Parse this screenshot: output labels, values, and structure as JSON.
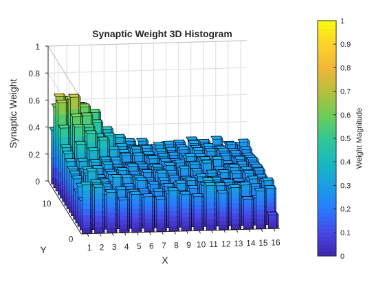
{
  "chart_data": {
    "type": "bar3",
    "title": "Synaptic Weight 3D Histogram",
    "xlabel": "X",
    "ylabel": "Y",
    "zlabel": "Synaptic Weight",
    "xlim": [
      0.5,
      16.5
    ],
    "ylim": [
      0.5,
      15.5
    ],
    "zlim": [
      0,
      1
    ],
    "x_ticks": [
      "1",
      "2",
      "3",
      "4",
      "5",
      "6",
      "7",
      "8",
      "9",
      "10",
      "11",
      "12",
      "13",
      "14",
      "15",
      "16"
    ],
    "y_ticks": [
      "0",
      "10"
    ],
    "z_ticks": [
      "0",
      "0.2",
      "0.4",
      "0.6",
      "0.8",
      "1"
    ],
    "grid": true,
    "colormap": "parula",
    "rows_y": [
      1,
      2,
      3,
      4,
      5,
      6,
      7,
      8,
      9,
      10,
      11,
      12,
      13,
      14,
      15
    ],
    "cols_x": [
      1,
      2,
      3,
      4,
      5,
      6,
      7,
      8,
      9,
      10,
      11,
      12,
      13,
      14,
      15,
      16
    ],
    "values": [
      [
        0.36,
        0.34,
        0.3,
        0.24,
        0.28,
        0.26,
        0.24,
        0.3,
        0.27,
        0.25,
        0.33,
        0.27,
        0.31,
        0.22,
        0.28,
        0.1
      ],
      [
        0.22,
        0.35,
        0.26,
        0.29,
        0.27,
        0.23,
        0.27,
        0.25,
        0.25,
        0.22,
        0.34,
        0.3,
        0.28,
        0.3,
        0.2,
        0.27
      ],
      [
        0.3,
        0.28,
        0.29,
        0.23,
        0.24,
        0.25,
        0.22,
        0.28,
        0.3,
        0.26,
        0.28,
        0.28,
        0.25,
        0.27,
        0.26,
        0.3
      ],
      [
        0.23,
        0.38,
        0.3,
        0.33,
        0.26,
        0.3,
        0.27,
        0.25,
        0.26,
        0.29,
        0.26,
        0.29,
        0.27,
        0.25,
        0.29,
        0.27
      ],
      [
        0.3,
        0.32,
        0.28,
        0.25,
        0.3,
        0.29,
        0.23,
        0.27,
        0.22,
        0.26,
        0.29,
        0.27,
        0.25,
        0.25,
        0.25,
        0.23
      ],
      [
        0.31,
        0.34,
        0.28,
        0.3,
        0.24,
        0.26,
        0.25,
        0.3,
        0.26,
        0.25,
        0.25,
        0.29,
        0.29,
        0.28,
        0.28,
        0.25
      ],
      [
        0.32,
        0.3,
        0.32,
        0.29,
        0.3,
        0.27,
        0.28,
        0.28,
        0.27,
        0.3,
        0.28,
        0.24,
        0.25,
        0.3,
        0.28,
        0.27
      ],
      [
        0.35,
        0.35,
        0.34,
        0.32,
        0.28,
        0.3,
        0.26,
        0.29,
        0.3,
        0.26,
        0.3,
        0.31,
        0.26,
        0.28,
        0.25,
        0.27
      ],
      [
        0.38,
        0.45,
        0.4,
        0.33,
        0.27,
        0.28,
        0.27,
        0.27,
        0.25,
        0.29,
        0.28,
        0.31,
        0.31,
        0.25,
        0.27,
        0.26
      ],
      [
        0.4,
        0.55,
        0.5,
        0.45,
        0.3,
        0.26,
        0.26,
        0.3,
        0.28,
        0.26,
        0.31,
        0.28,
        0.25,
        0.25,
        0.28,
        0.27
      ],
      [
        0.52,
        0.6,
        0.52,
        0.42,
        0.35,
        0.3,
        0.3,
        0.28,
        0.29,
        0.25,
        0.27,
        0.28,
        0.26,
        0.28,
        0.26,
        0.26
      ],
      [
        0.68,
        0.72,
        0.58,
        0.42,
        0.32,
        0.3,
        0.32,
        0.28,
        0.3,
        0.27,
        0.26,
        0.3,
        0.29,
        0.29,
        0.27,
        0.25
      ],
      [
        0.7,
        0.68,
        0.62,
        0.5,
        0.4,
        0.32,
        0.3,
        0.3,
        0.32,
        0.28,
        0.28,
        0.29,
        0.3,
        0.28,
        0.26,
        0.27
      ],
      [
        0.6,
        0.65,
        0.6,
        0.55,
        0.42,
        0.36,
        0.28,
        0.28,
        0.28,
        0.3,
        0.27,
        0.3,
        0.27,
        0.26,
        0.28,
        0.3
      ],
      [
        0.4,
        0.55,
        0.58,
        0.48,
        0.36,
        0.33,
        0.3,
        0.3,
        0.25,
        0.27,
        0.28,
        0.3,
        0.28,
        0.3,
        0.26,
        0.25
      ]
    ]
  },
  "colorbar": {
    "label": "Weight Magnitude",
    "ticks": [
      "0",
      "0.1",
      "0.2",
      "0.3",
      "0.4",
      "0.5",
      "0.6",
      "0.7",
      "0.8",
      "0.9",
      "1"
    ]
  },
  "colors": {
    "bar_edge": "#000000",
    "grid": "#dcdcdc",
    "axis": "#262626"
  }
}
